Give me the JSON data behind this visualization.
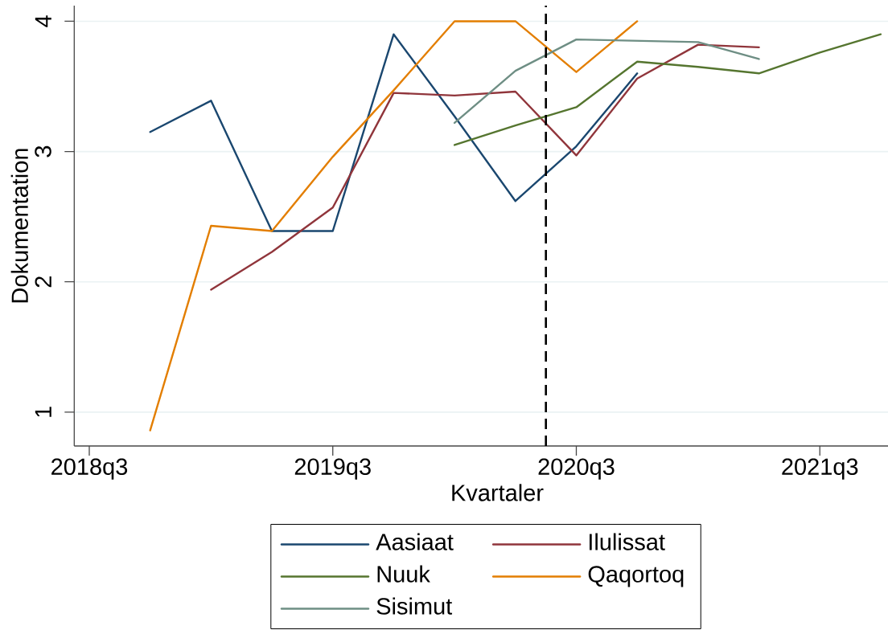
{
  "chart_data": {
    "type": "line",
    "xlabel": "Kvartaler",
    "ylabel": "Dokumentation",
    "categories": [
      "2018q3",
      null,
      null,
      null,
      "2019q3",
      null,
      null,
      null,
      "2020q3",
      null,
      null,
      null,
      "2021q3",
      null
    ],
    "ylim": [
      0.74,
      4.12
    ],
    "yticks": [
      1,
      2,
      3,
      4
    ],
    "grid": "y",
    "legend": "bottom",
    "series": [
      {
        "name": "Aasiaat",
        "color": "#1a476f",
        "values": [
          null,
          3.15,
          3.39,
          2.39,
          2.39,
          3.9,
          3.27,
          2.62,
          3.04,
          3.6,
          null,
          null,
          null,
          null
        ]
      },
      {
        "name": "Ilulissat",
        "color": "#90353b",
        "values": [
          null,
          null,
          1.94,
          2.23,
          2.57,
          3.45,
          3.43,
          3.46,
          2.97,
          3.56,
          3.82,
          3.8,
          null,
          null
        ]
      },
      {
        "name": "Nuuk",
        "color": "#55752f",
        "values": [
          null,
          null,
          null,
          null,
          null,
          null,
          3.05,
          3.2,
          3.34,
          3.69,
          3.65,
          3.6,
          3.76,
          3.9
        ]
      },
      {
        "name": "Qaqortoq",
        "color": "#e37e00",
        "values": [
          null,
          0.86,
          2.43,
          2.39,
          2.96,
          3.47,
          4.0,
          4.0,
          3.61,
          4.0,
          null,
          null,
          null,
          null
        ]
      },
      {
        "name": "Sisimut",
        "color": "#6e8e84",
        "values": [
          null,
          null,
          null,
          null,
          null,
          null,
          3.22,
          3.62,
          3.86,
          3.85,
          3.84,
          3.71,
          null,
          null
        ]
      }
    ]
  }
}
